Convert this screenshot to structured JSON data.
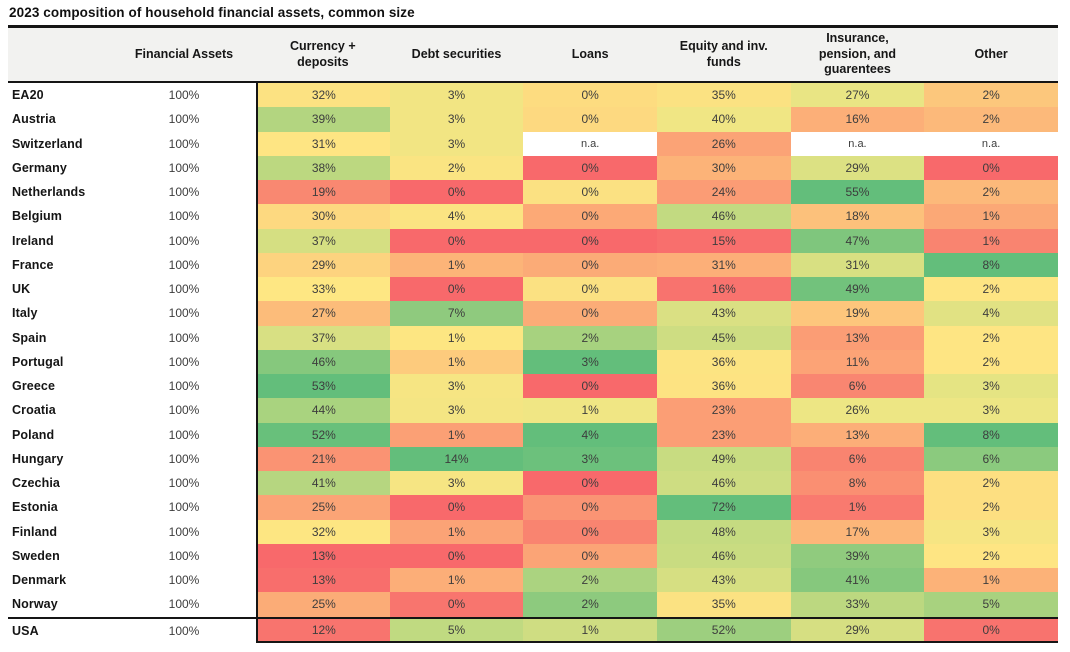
{
  "title": "2023 composition of household financial assets, common size",
  "colors": {
    "scale_min_red": "#F8696B",
    "scale_mid_yellow": "#FFEB84",
    "scale_max_green": "#63BE7B",
    "header_bg": "#F2F2F0",
    "border": "#151515",
    "na_bg": "#FFFFFF"
  },
  "chart_data": {
    "type": "heatmap",
    "title": "2023 composition of household financial assets, common size",
    "row_header_label": "",
    "columns": [
      "Financial Assets",
      "Currency + deposits",
      "Debt securities",
      "Loans",
      "Equity and inv. funds",
      "Insurance, pension, and guarentees",
      "Other"
    ],
    "value_columns": [
      "Currency + deposits",
      "Debt securities",
      "Loans",
      "Equity and inv. funds",
      "Insurance, pension, and guarentees",
      "Other"
    ],
    "legend": "cells shaded red (low) to green (high) per column",
    "rows": [
      {
        "label": "EA20",
        "financial_assets": "100%",
        "values": [
          "32%",
          "3%",
          "0%",
          "35%",
          "27%",
          "2%"
        ],
        "colors": [
          "#FCE282",
          "#F2E583",
          "#FDDC80",
          "#FBE282",
          "#E9E584",
          "#FCC77C"
        ]
      },
      {
        "label": "Austria",
        "financial_assets": "100%",
        "values": [
          "39%",
          "3%",
          "0%",
          "40%",
          "16%",
          "2%"
        ],
        "colors": [
          "#B3D580",
          "#F2E583",
          "#FDD980",
          "#F0E684",
          "#FCAF78",
          "#FCB97A"
        ]
      },
      {
        "label": "Switzerland",
        "financial_assets": "100%",
        "values": [
          "31%",
          "3%",
          "n.a.",
          "26%",
          "n.a.",
          "n.a."
        ],
        "colors": [
          "#FEE583",
          "#F2E583",
          "#FFFFFF",
          "#FBA376",
          "#FFFFFF",
          "#FFFFFF"
        ]
      },
      {
        "label": "Germany",
        "financial_assets": "100%",
        "values": [
          "38%",
          "2%",
          "0%",
          "30%",
          "29%",
          "0%"
        ],
        "colors": [
          "#BCD880",
          "#FAE482",
          "#F8696B",
          "#FCB378",
          "#DCE183",
          "#F8696B"
        ]
      },
      {
        "label": "Netherlands",
        "financial_assets": "100%",
        "values": [
          "19%",
          "0%",
          "0%",
          "24%",
          "55%",
          "2%"
        ],
        "colors": [
          "#F98871",
          "#F8696B",
          "#FBE182",
          "#FB9C75",
          "#63BE7B",
          "#FCB97A"
        ]
      },
      {
        "label": "Belgium",
        "financial_assets": "100%",
        "values": [
          "30%",
          "4%",
          "0%",
          "46%",
          "18%",
          "1%"
        ],
        "colors": [
          "#FDD980",
          "#FBE482",
          "#FCA976",
          "#C2DA81",
          "#FCC17B",
          "#FBA876"
        ]
      },
      {
        "label": "Ireland",
        "financial_assets": "100%",
        "values": [
          "37%",
          "0%",
          "0%",
          "15%",
          "47%",
          "1%"
        ],
        "colors": [
          "#D5DF82",
          "#F8696B",
          "#F8696B",
          "#F86F6D",
          "#7FC67D",
          "#F98470"
        ]
      },
      {
        "label": "France",
        "financial_assets": "100%",
        "values": [
          "29%",
          "1%",
          "0%",
          "31%",
          "31%",
          "8%"
        ],
        "colors": [
          "#FDD37F",
          "#FCB478",
          "#FBAB77",
          "#FCAF78",
          "#D8E082",
          "#63BE7B"
        ]
      },
      {
        "label": "UK",
        "financial_assets": "100%",
        "values": [
          "33%",
          "0%",
          "0%",
          "16%",
          "49%",
          "2%"
        ],
        "colors": [
          "#FEE783",
          "#F8696B",
          "#FBE182",
          "#F8736E",
          "#72C27C",
          "#FEE583"
        ]
      },
      {
        "label": "Italy",
        "financial_assets": "100%",
        "values": [
          "27%",
          "7%",
          "0%",
          "43%",
          "19%",
          "4%"
        ],
        "colors": [
          "#FCBC7A",
          "#8FCA7E",
          "#FBAC77",
          "#DAE083",
          "#FDC67C",
          "#E1E283"
        ]
      },
      {
        "label": "Spain",
        "financial_assets": "100%",
        "values": [
          "37%",
          "1%",
          "2%",
          "45%",
          "13%",
          "2%"
        ],
        "colors": [
          "#D8E083",
          "#FDE682",
          "#A7D27F",
          "#CEDD82",
          "#FB9D75",
          "#FEE583"
        ]
      },
      {
        "label": "Portugal",
        "financial_assets": "100%",
        "values": [
          "46%",
          "1%",
          "3%",
          "36%",
          "11%",
          "2%"
        ],
        "colors": [
          "#86C87D",
          "#FDCB7D",
          "#63BE7B",
          "#FCE482",
          "#FCA376",
          "#FEE583"
        ]
      },
      {
        "label": "Greece",
        "financial_assets": "100%",
        "values": [
          "53%",
          "3%",
          "0%",
          "36%",
          "6%",
          "3%"
        ],
        "colors": [
          "#63BE7B",
          "#F6E583",
          "#F8696B",
          "#FDE382",
          "#F98671",
          "#E5E483"
        ]
      },
      {
        "label": "Croatia",
        "financial_assets": "100%",
        "values": [
          "44%",
          "3%",
          "1%",
          "23%",
          "26%",
          "3%"
        ],
        "colors": [
          "#A9D37F",
          "#F4E583",
          "#F0E684",
          "#FB9E75",
          "#EDE684",
          "#EDE684"
        ]
      },
      {
        "label": "Poland",
        "financial_assets": "100%",
        "values": [
          "52%",
          "1%",
          "4%",
          "23%",
          "13%",
          "8%"
        ],
        "colors": [
          "#68C07B",
          "#FBA075",
          "#63BE7B",
          "#FB9E75",
          "#FCAE78",
          "#63BE7B"
        ]
      },
      {
        "label": "Hungary",
        "financial_assets": "100%",
        "values": [
          "21%",
          "14%",
          "3%",
          "49%",
          "6%",
          "6%"
        ],
        "colors": [
          "#FA9373",
          "#63BE7B",
          "#6CC17C",
          "#C8DC81",
          "#F98470",
          "#8BCA7E"
        ]
      },
      {
        "label": "Czechia",
        "financial_assets": "100%",
        "values": [
          "41%",
          "3%",
          "0%",
          "46%",
          "8%",
          "2%"
        ],
        "colors": [
          "#B6D680",
          "#F6E583",
          "#F8696B",
          "#CEDD82",
          "#FA8F72",
          "#FDDF81"
        ]
      },
      {
        "label": "Estonia",
        "financial_assets": "100%",
        "values": [
          "25%",
          "0%",
          "0%",
          "72%",
          "1%",
          "2%"
        ],
        "colors": [
          "#FBA476",
          "#F8696B",
          "#FA9474",
          "#63BE7B",
          "#F97A6F",
          "#FDDF81"
        ]
      },
      {
        "label": "Finland",
        "financial_assets": "100%",
        "values": [
          "32%",
          "1%",
          "0%",
          "48%",
          "17%",
          "3%"
        ],
        "colors": [
          "#FDE682",
          "#FBA376",
          "#F98470",
          "#C5DB81",
          "#FCB679",
          "#F6E583"
        ]
      },
      {
        "label": "Sweden",
        "financial_assets": "100%",
        "values": [
          "13%",
          "0%",
          "0%",
          "46%",
          "39%",
          "2%"
        ],
        "colors": [
          "#F8696B",
          "#F8696B",
          "#FBA476",
          "#C9DC81",
          "#90CB7E",
          "#FEE583"
        ]
      },
      {
        "label": "Denmark",
        "financial_assets": "100%",
        "values": [
          "13%",
          "1%",
          "2%",
          "43%",
          "41%",
          "1%"
        ],
        "colors": [
          "#F86E6C",
          "#FCAE78",
          "#ABD380",
          "#D6DF82",
          "#86C87D",
          "#FCB278"
        ]
      },
      {
        "label": "Norway",
        "financial_assets": "100%",
        "values": [
          "25%",
          "0%",
          "2%",
          "35%",
          "33%",
          "5%"
        ],
        "colors": [
          "#FBAC77",
          "#F8756E",
          "#8DCA7E",
          "#FBE282",
          "#BCD880",
          "#A8D27F"
        ]
      },
      {
        "label": "USA",
        "financial_assets": "100%",
        "values": [
          "12%",
          "5%",
          "1%",
          "52%",
          "29%",
          "0%"
        ],
        "colors": [
          "#F8746E",
          "#C0DA81",
          "#CFDD82",
          "#9DCF7F",
          "#D6DF82",
          "#F8736E"
        ]
      }
    ],
    "separator_above_row": "USA"
  }
}
